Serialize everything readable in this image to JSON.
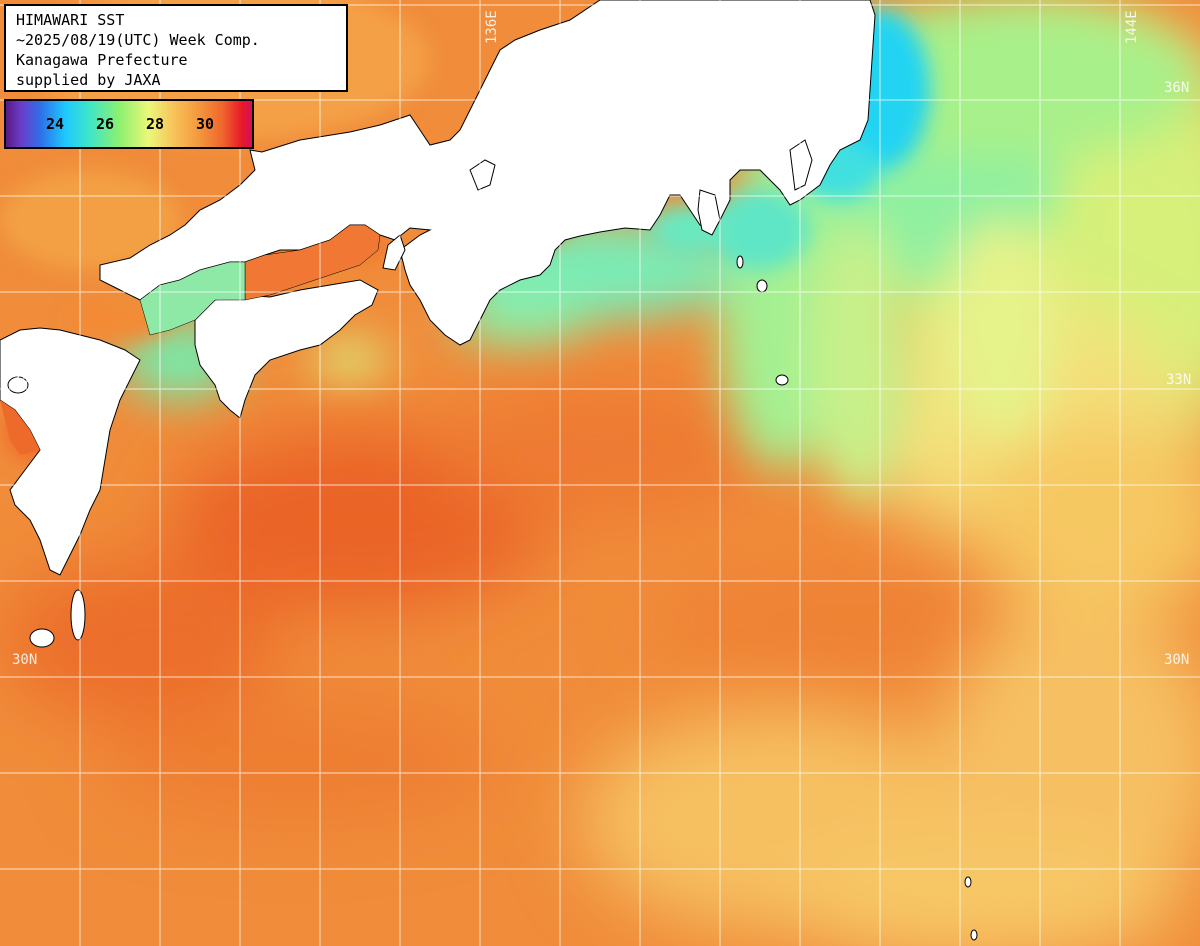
{
  "title": {
    "line1": "HIMAWARI SST",
    "line2": "~2025/08/19(UTC) Week Comp.",
    "line3": "Kanagawa Prefecture",
    "line4": "supplied by JAXA"
  },
  "colorbar": {
    "ticks": [
      "24",
      "26",
      "28",
      "30"
    ]
  },
  "grid_labels": {
    "lat_36_right": "36N",
    "lat_33_left": "33N",
    "lat_33_right": "33N",
    "lat_30_left": "30N",
    "lat_30_right": "30N",
    "lon_136": "136E",
    "lon_144": "144E"
  },
  "colors": {
    "warm_ocean": "#f08c3a",
    "hot_ocean": "#ec6a28",
    "cool_ocean": "#8ce8a0",
    "cold_ocean": "#30d8f0",
    "land": "#ffffff",
    "grid": "#ffffff"
  }
}
